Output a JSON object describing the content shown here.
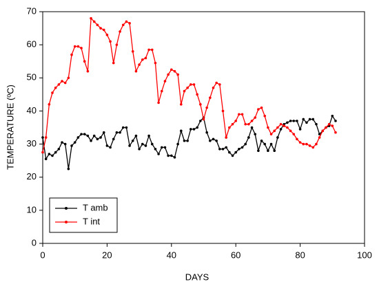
{
  "chart_data": {
    "type": "line",
    "xlabel": "DAYS",
    "ylabel": "TEMPERATURE (ºC)",
    "x": [
      0,
      1,
      2,
      3,
      4,
      5,
      6,
      7,
      8,
      9,
      10,
      11,
      12,
      13,
      14,
      15,
      16,
      17,
      18,
      19,
      20,
      21,
      22,
      23,
      24,
      25,
      26,
      27,
      28,
      29,
      30,
      31,
      32,
      33,
      34,
      35,
      36,
      37,
      38,
      39,
      40,
      41,
      42,
      43,
      44,
      45,
      46,
      47,
      48,
      49,
      50,
      51,
      52,
      53,
      54,
      55,
      56,
      57,
      58,
      59,
      60,
      61,
      62,
      63,
      64,
      65,
      66,
      67,
      68,
      69,
      70,
      71,
      72,
      73,
      74,
      75,
      76,
      77,
      78,
      79,
      80,
      81,
      82,
      83,
      84,
      85,
      86,
      87,
      88,
      89,
      90,
      91
    ],
    "series": [
      {
        "name": "T amb",
        "color": "#000000",
        "values": [
          32,
          25.5,
          27,
          26.5,
          27.5,
          28.5,
          30.5,
          30,
          22.5,
          29.5,
          30.5,
          32,
          33,
          33,
          32.5,
          31,
          32.5,
          31.5,
          32,
          33.5,
          29.5,
          29,
          31.5,
          33.5,
          33.5,
          35,
          35,
          29.5,
          31,
          32.5,
          28.5,
          30,
          29.5,
          32.5,
          30,
          28.5,
          27,
          29,
          29,
          26.5,
          26.5,
          26,
          30,
          34,
          31,
          31,
          34.5,
          34.5,
          35,
          37,
          38,
          33.5,
          31,
          31.5,
          31,
          28.5,
          28.5,
          29,
          27.5,
          26.5,
          27.5,
          28.5,
          29,
          30,
          32,
          35,
          33,
          28,
          31,
          30,
          28,
          30,
          28,
          32,
          34.5,
          36,
          36.5,
          37,
          37,
          37,
          34.5,
          37.5,
          36.5,
          37.5,
          37.5,
          36,
          33,
          34,
          35,
          35.5,
          38.5,
          37
        ]
      },
      {
        "name": "T int",
        "color": "#ff0000",
        "values": [
          27.5,
          32,
          42,
          45.5,
          47,
          48,
          49,
          48.5,
          50,
          57,
          59.5,
          59.5,
          59,
          55,
          52,
          68,
          67,
          66,
          65,
          64.5,
          63,
          61,
          54.5,
          60,
          64,
          66,
          67,
          66.5,
          58,
          52,
          54,
          55.5,
          56,
          58.5,
          58.5,
          54.5,
          42.5,
          46,
          49,
          51,
          52.5,
          52,
          51,
          42,
          46,
          47,
          48,
          48,
          45,
          42,
          37.5,
          41,
          44,
          47,
          48.5,
          48,
          40,
          32,
          35,
          36,
          37,
          39,
          39,
          36,
          36,
          37,
          38,
          40.5,
          41,
          38.5,
          35,
          33,
          34,
          35,
          36,
          35.5,
          35,
          34,
          33,
          31.5,
          30.5,
          30,
          30,
          29.5,
          29,
          30,
          32,
          34,
          35,
          36,
          35.5,
          33.5
        ]
      }
    ],
    "xlim": [
      0,
      100
    ],
    "xticks": [
      0,
      20,
      40,
      60,
      80,
      100
    ],
    "ylim": [
      0,
      70
    ],
    "yticks": [
      0,
      10,
      20,
      30,
      40,
      50,
      60,
      70
    ],
    "legend": "lower left",
    "grid": false
  }
}
